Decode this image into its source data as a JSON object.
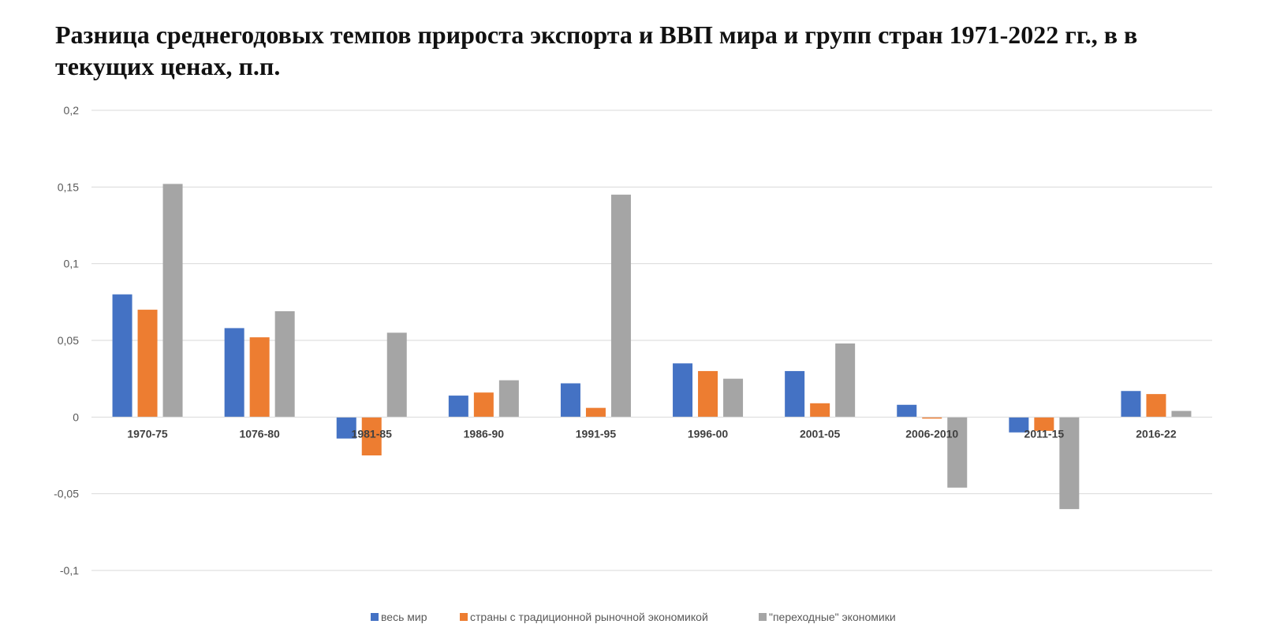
{
  "chart_data": {
    "type": "bar",
    "title": "Разница среднегодовых темпов прироста экспорта и ВВП мира и групп стран 1971-2022 гг., в в текущих ценах, п.п.",
    "xlabel": "",
    "ylabel": "",
    "ylim": [
      -0.1,
      0.2
    ],
    "yticks": [
      0.2,
      0.15,
      0.1,
      0.05,
      0,
      -0.05,
      -0.1
    ],
    "ytick_labels": [
      "0,2",
      "0,15",
      "0,1",
      "0,05",
      "0",
      "-0,05",
      "-0,1"
    ],
    "grid": true,
    "legend_position": "bottom",
    "categories": [
      "1970-75",
      "1076-80",
      "1981-85",
      "1986-90",
      "1991-95",
      "1996-00",
      "2001-05",
      "2006-2010",
      "2011-15",
      "2016-22"
    ],
    "series": [
      {
        "name": "весь мир",
        "color": "#4472C4",
        "values": [
          0.08,
          0.058,
          -0.014,
          0.014,
          0.022,
          0.035,
          0.03,
          0.008,
          -0.01,
          0.017
        ]
      },
      {
        "name": "страны с традиционной рыночной экономикой",
        "color": "#ED7D31",
        "values": [
          0.07,
          0.052,
          -0.025,
          0.016,
          0.006,
          0.03,
          0.009,
          -0.001,
          -0.009,
          0.015
        ]
      },
      {
        "name": "\"переходные\" экономики",
        "color": "#A5A5A5",
        "values": [
          0.152,
          0.069,
          0.055,
          0.024,
          0.145,
          0.025,
          0.048,
          -0.046,
          -0.06,
          0.004
        ]
      }
    ]
  }
}
